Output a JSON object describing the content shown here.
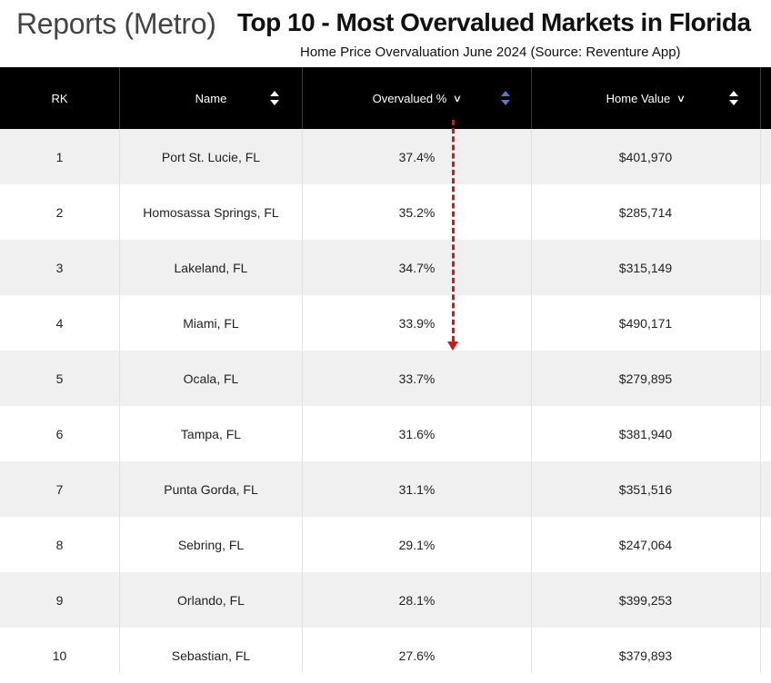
{
  "header": {
    "section_title": "Reports (Metro)",
    "main_title": "Top 10 - Most Overvalued Markets in Florida",
    "subtitle": "Home Price Overvaluation June 2024 (Source: Reventure App)"
  },
  "table": {
    "columns": {
      "rank": "RK",
      "name": "Name",
      "overvalued": "Overvalued %",
      "home_value": "Home Value"
    },
    "rows": [
      {
        "rank": "1",
        "name": "Port St. Lucie, FL",
        "overvalued": "37.4%",
        "home_value": "$401,970"
      },
      {
        "rank": "2",
        "name": "Homosassa Springs, FL",
        "overvalued": "35.2%",
        "home_value": "$285,714"
      },
      {
        "rank": "3",
        "name": "Lakeland, FL",
        "overvalued": "34.7%",
        "home_value": "$315,149"
      },
      {
        "rank": "4",
        "name": "Miami, FL",
        "overvalued": "33.9%",
        "home_value": "$490,171"
      },
      {
        "rank": "5",
        "name": "Ocala, FL",
        "overvalued": "33.7%",
        "home_value": "$279,895"
      },
      {
        "rank": "6",
        "name": "Tampa, FL",
        "overvalued": "31.6%",
        "home_value": "$381,940"
      },
      {
        "rank": "7",
        "name": "Punta Gorda, FL",
        "overvalued": "31.1%",
        "home_value": "$351,516"
      },
      {
        "rank": "8",
        "name": "Sebring, FL",
        "overvalued": "29.1%",
        "home_value": "$247,064"
      },
      {
        "rank": "9",
        "name": "Orlando, FL",
        "overvalued": "28.1%",
        "home_value": "$399,253"
      },
      {
        "rank": "10",
        "name": "Sebastian, FL",
        "overvalued": "27.6%",
        "home_value": "$379,893"
      }
    ]
  },
  "icons": {
    "sort": "sort-updown-icon",
    "chevron": "chevron-down-icon",
    "annotation": "dashed-down-arrow"
  },
  "colors": {
    "header_bg": "#000000",
    "row_alt": "#f0f0f0",
    "annotation_arrow": "#d01818",
    "active_sort": "#5a78c8"
  }
}
